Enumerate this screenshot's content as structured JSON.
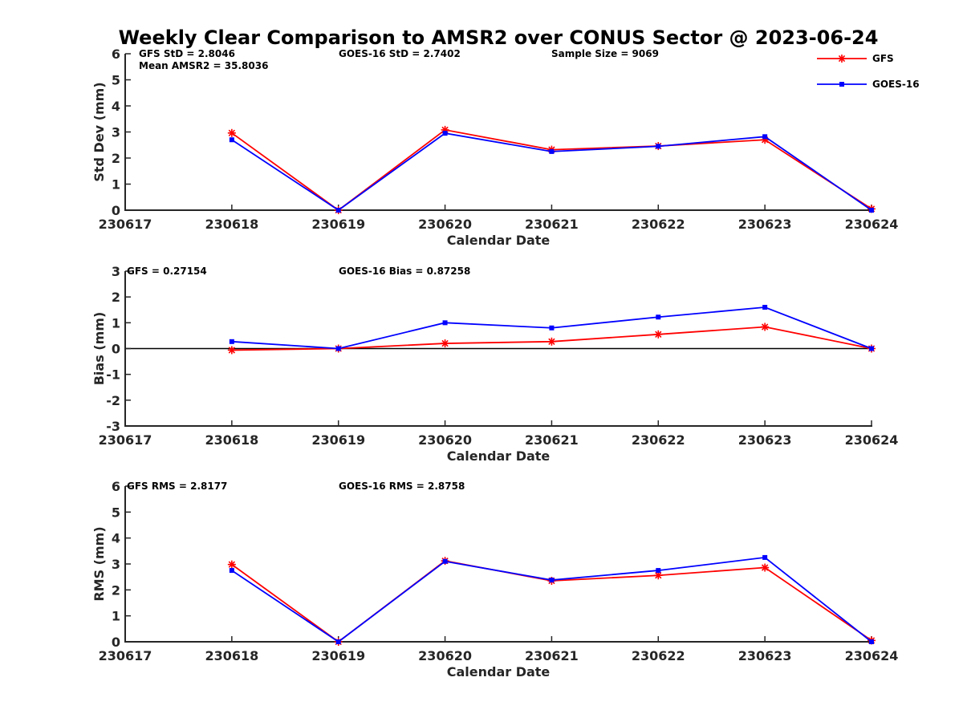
{
  "title": "Weekly Clear Comparison to AMSR2 over CONUS Sector @ 2023-06-24",
  "legend": [
    {
      "name": "GFS",
      "color": "#ff0000",
      "marker": "asterisk"
    },
    {
      "name": "GOES-16",
      "color": "#0000ff",
      "marker": "square"
    }
  ],
  "chart_data": [
    {
      "type": "line",
      "ylabel": "Std Dev (mm)",
      "xlabel": "Calendar Date",
      "categories": [
        "230617",
        "230618",
        "230619",
        "230620",
        "230621",
        "230622",
        "230623",
        "230624"
      ],
      "ylim": [
        0,
        6
      ],
      "yticks": [
        "0",
        "1",
        "2",
        "3",
        "4",
        "5",
        "6"
      ],
      "series": [
        {
          "name": "GFS",
          "values": [
            null,
            2.96,
            0.0,
            3.08,
            2.32,
            2.46,
            2.7,
            0.05
          ]
        },
        {
          "name": "GOES-16",
          "values": [
            null,
            2.7,
            0.0,
            2.95,
            2.25,
            2.45,
            2.82,
            0.0
          ]
        }
      ],
      "zero_line": false,
      "annotations": [
        {
          "text": "GFS StD = 2.8046"
        },
        {
          "text": "Mean AMSR2 = 35.8036"
        },
        {
          "text": "GOES-16 StD = 2.7402"
        },
        {
          "text": "Sample Size = 9069"
        }
      ]
    },
    {
      "type": "line",
      "ylabel": "Bias (mm)",
      "xlabel": "Calendar Date",
      "categories": [
        "230617",
        "230618",
        "230619",
        "230620",
        "230621",
        "230622",
        "230623",
        "230624"
      ],
      "ylim": [
        -3,
        3
      ],
      "yticks": [
        "-3",
        "-2",
        "-1",
        "0",
        "1",
        "2",
        "3"
      ],
      "series": [
        {
          "name": "GFS",
          "values": [
            null,
            -0.06,
            0.0,
            0.2,
            0.27,
            0.55,
            0.84,
            0.0
          ]
        },
        {
          "name": "GOES-16",
          "values": [
            null,
            0.27,
            0.0,
            1.0,
            0.8,
            1.22,
            1.6,
            0.0
          ]
        }
      ],
      "zero_line": true,
      "annotations": [
        {
          "text": "GFS = 0.27154"
        },
        {
          "text": "GOES-16 Bias  = 0.87258"
        }
      ]
    },
    {
      "type": "line",
      "ylabel": "RMS (mm)",
      "xlabel": "Calendar Date",
      "categories": [
        "230617",
        "230618",
        "230619",
        "230620",
        "230621",
        "230622",
        "230623",
        "230624"
      ],
      "ylim": [
        0,
        6
      ],
      "yticks": [
        "0",
        "1",
        "2",
        "3",
        "4",
        "5",
        "6"
      ],
      "series": [
        {
          "name": "GFS",
          "values": [
            null,
            2.98,
            0.0,
            3.12,
            2.35,
            2.56,
            2.86,
            0.05
          ]
        },
        {
          "name": "GOES-16",
          "values": [
            null,
            2.75,
            0.0,
            3.1,
            2.38,
            2.75,
            3.25,
            0.0
          ]
        }
      ],
      "zero_line": false,
      "annotations": [
        {
          "text": "GFS RMS = 2.8177"
        },
        {
          "text": "GOES-16 RMS = 2.8758"
        }
      ]
    }
  ]
}
